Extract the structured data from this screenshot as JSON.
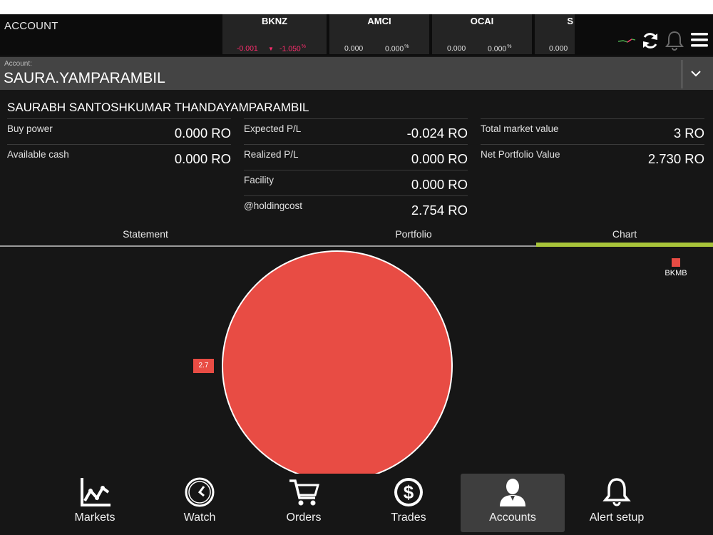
{
  "header": {
    "title": "ACCOUNT"
  },
  "tickers": [
    {
      "symbol": "BKNZ",
      "change": "-0.001",
      "change_pct": "-1.050",
      "pct_sign": "%",
      "direction": "down"
    },
    {
      "symbol": "AMCI",
      "change": "0.000",
      "change_pct": "0.000",
      "pct_sign": "%",
      "direction": "flat"
    },
    {
      "symbol": "OCAI",
      "change": "0.000",
      "change_pct": "0.000",
      "pct_sign": "%",
      "direction": "flat"
    },
    {
      "symbol": "S",
      "change": "0.000",
      "change_pct": "",
      "pct_sign": "",
      "direction": "flat"
    }
  ],
  "top_icons": [
    "mini-chart-icon",
    "refresh-icon",
    "bell-icon",
    "menu-icon"
  ],
  "account_select": {
    "label": "Account:",
    "value": "SAURA.YAMPARAMBIL"
  },
  "summary": {
    "holder_name": "SAURABH SANTOSHKUMAR THANDAYAMPARAMBIL",
    "col1": [
      {
        "label": "Buy power",
        "value": "0.000 RO"
      },
      {
        "label": "Available cash",
        "value": "0.000 RO"
      }
    ],
    "col2": [
      {
        "label": "Expected P/L",
        "value": "-0.024 RO"
      },
      {
        "label": "Realized P/L",
        "value": "0.000 RO"
      },
      {
        "label": "Facility",
        "value": "0.000 RO"
      },
      {
        "label": "@holdingcost",
        "value": "2.754 RO"
      }
    ],
    "col3": [
      {
        "label": "Total market value",
        "value": "3 RO"
      },
      {
        "label": "Net Portfolio Value",
        "value": "2.730 RO"
      }
    ]
  },
  "tabs": [
    {
      "label": "Statement",
      "active": false
    },
    {
      "label": "Portfolio",
      "active": false
    },
    {
      "label": "Chart",
      "active": true
    }
  ],
  "chart_data": {
    "type": "pie",
    "slices": [
      {
        "label": "BKMB",
        "value": 2.7,
        "color": "#e84c44"
      }
    ],
    "data_labels": [
      "2.7"
    ],
    "legend": [
      "BKMB"
    ],
    "legend_position": "top-right"
  },
  "bottom_nav": [
    {
      "label": "Markets",
      "icon": "line-chart-icon",
      "active": false
    },
    {
      "label": "Watch",
      "icon": "clock-icon",
      "active": false
    },
    {
      "label": "Orders",
      "icon": "cart-icon",
      "active": false
    },
    {
      "label": "Trades",
      "icon": "dollar-icon",
      "active": false
    },
    {
      "label": "Accounts",
      "icon": "user-icon",
      "active": true
    },
    {
      "label": "Alert setup",
      "icon": "bell-icon",
      "active": false
    }
  ],
  "colors": {
    "accent": "#a8c43a",
    "negative": "#ff2d6e",
    "slice": "#e84c44"
  }
}
